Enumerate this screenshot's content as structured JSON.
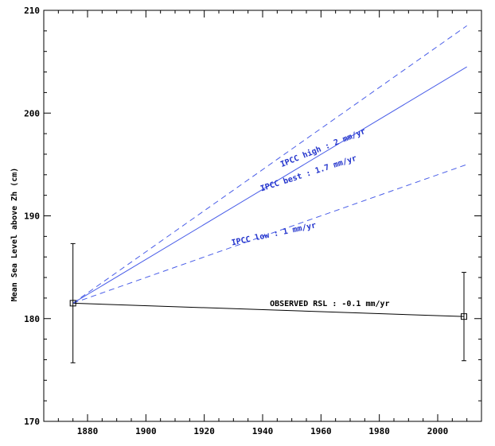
{
  "chart_data": {
    "type": "line",
    "title": "",
    "xlabel": "",
    "ylabel": "Mean Sea Level above Zh (cm)",
    "xlim": [
      1865,
      2015
    ],
    "ylim": [
      170,
      210
    ],
    "x_ticks": [
      1880,
      1900,
      1920,
      1940,
      1960,
      1980,
      2000
    ],
    "y_ticks": [
      170,
      180,
      190,
      200,
      210
    ],
    "grid": false,
    "series": [
      {
        "key": "observed",
        "x": [
          1875,
          2009
        ],
        "y": [
          181.5,
          180.2
        ],
        "color": "#000000",
        "dash": false
      },
      {
        "key": "high",
        "x": [
          1875,
          2010
        ],
        "y": [
          181.5,
          208.5
        ],
        "color": "#4a5ee8",
        "dash": true
      },
      {
        "key": "best",
        "x": [
          1875,
          2010
        ],
        "y": [
          181.5,
          204.5
        ],
        "color": "#4a5ee8",
        "dash": false
      },
      {
        "key": "low",
        "x": [
          1875,
          2010
        ],
        "y": [
          181.5,
          195.0
        ],
        "color": "#4a5ee8",
        "dash": true
      }
    ],
    "error_bars": [
      {
        "x": 1875,
        "y": 181.5,
        "low": 175.7,
        "high": 187.3
      },
      {
        "x": 2009,
        "y": 180.2,
        "low": 175.9,
        "high": 184.5
      }
    ],
    "annotations": [
      {
        "key": "high",
        "text": "IPCC high : 2 mm/yr",
        "x": 1961,
        "y": 196.4,
        "angle": -22,
        "color": "#2233cc"
      },
      {
        "key": "best",
        "text": "IPCC best : 1.7 mm/yr",
        "x": 1956,
        "y": 193.9,
        "angle": -18,
        "color": "#2233cc"
      },
      {
        "key": "low",
        "text": "IPCC low : 1 mm/yr",
        "x": 1944,
        "y": 188.0,
        "angle": -12,
        "color": "#2233cc"
      },
      {
        "key": "observed",
        "text": "OBSERVED RSL : -0.1 mm/yr",
        "x": 1963,
        "y": 181.2,
        "angle": 0,
        "color": "#000000"
      }
    ]
  }
}
